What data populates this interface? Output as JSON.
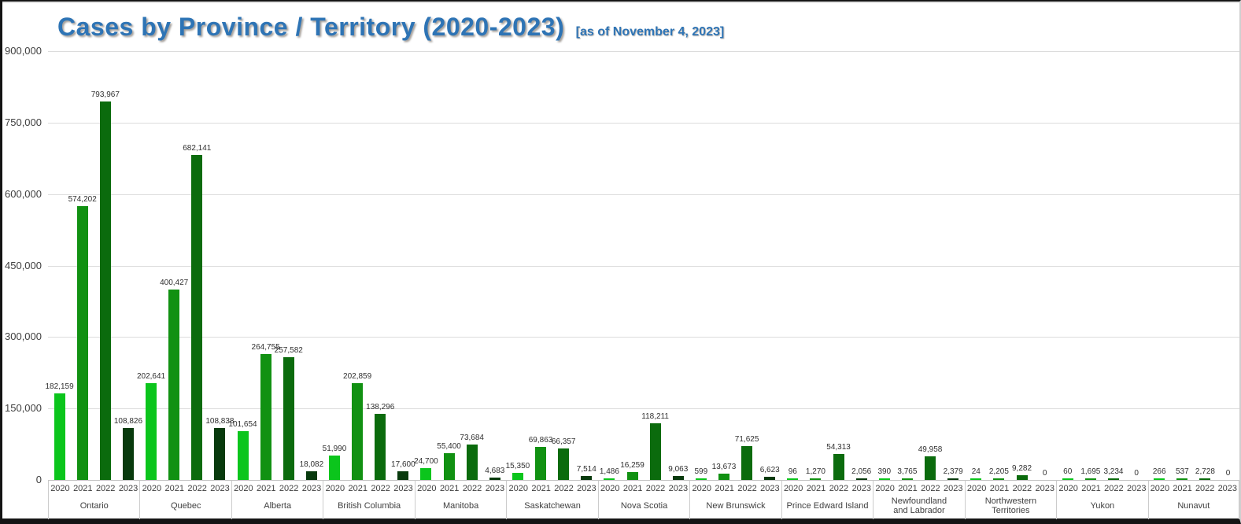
{
  "header": {
    "title": "Cases by Province / Territory (2020-2023)",
    "subtitle": "[as of November 4, 2023]",
    "title_color": "#2E74B5"
  },
  "chart_data": {
    "type": "bar",
    "title": "Cases by Province / Territory (2020-2023)",
    "subtitle": "[as of November 4, 2023]",
    "xlabel": "",
    "ylabel": "",
    "ylim": [
      0,
      900000
    ],
    "yticks": [
      0,
      150000,
      300000,
      450000,
      600000,
      750000,
      900000
    ],
    "ytick_labels": [
      "0",
      "150,000",
      "300,000",
      "450,000",
      "600,000",
      "750,000",
      "900,000"
    ],
    "grid": true,
    "value_labels": true,
    "legend_position": "none",
    "categories": [
      "Ontario",
      "Quebec",
      "Alberta",
      "British Columbia",
      "Manitoba",
      "Saskatchewan",
      "Nova Scotia",
      "New Brunswick",
      "Prince Edward Island",
      "Newfoundland\nand Labrador",
      "Northwestern Territories",
      "Yukon",
      "Nunavut"
    ],
    "series": [
      {
        "name": "2020",
        "color": "#0BC51C",
        "values": [
          182159,
          202641,
          101654,
          51990,
          24700,
          15350,
          1486,
          599,
          96,
          390,
          24,
          60,
          266
        ]
      },
      {
        "name": "2021",
        "color": "#119112",
        "values": [
          574202,
          400427,
          264755,
          202859,
          55400,
          69863,
          16259,
          13673,
          1270,
          3765,
          2205,
          1695,
          537
        ]
      },
      {
        "name": "2022",
        "color": "#0B6B0D",
        "values": [
          793967,
          682141,
          257582,
          138296,
          73684,
          66357,
          118211,
          71625,
          54313,
          49958,
          9282,
          3234,
          2728
        ]
      },
      {
        "name": "2023",
        "color": "#083A0D",
        "values": [
          108826,
          108838,
          18082,
          17600,
          4683,
          7514,
          9063,
          6623,
          2056,
          2379,
          0,
          0,
          0
        ]
      }
    ]
  }
}
